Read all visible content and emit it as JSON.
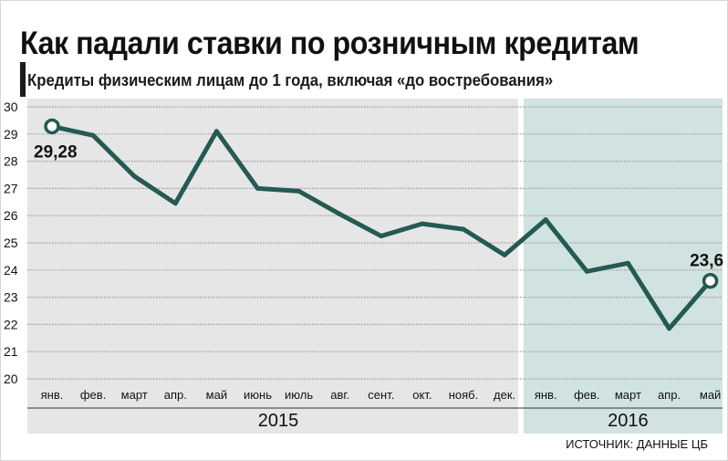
{
  "title": "Как падали ставки по розничным кредитам",
  "subtitle": "Кредиты физическим лицам до 1 года, включая «до востребования»",
  "source": "ИСТОЧНИК: ДАННЫЕ ЦБ",
  "colors": {
    "line": "#245a53",
    "panel_2015": "#e6e6e6",
    "panel_2016": "#d1e3e0",
    "grid": "#9a9a9a"
  },
  "chart_data": {
    "type": "line",
    "categories": [
      "янв.",
      "фев.",
      "март",
      "апр.",
      "май",
      "июнь",
      "июль",
      "авг.",
      "сент.",
      "окт.",
      "нояб.",
      "дек.",
      "янв.",
      "фев.",
      "март",
      "апр.",
      "май"
    ],
    "values": [
      29.28,
      28.95,
      27.45,
      26.45,
      29.1,
      27.0,
      26.9,
      26.05,
      25.25,
      25.7,
      25.5,
      24.55,
      25.85,
      23.95,
      24.25,
      21.85,
      23.6
    ],
    "ylim": [
      20,
      30
    ],
    "yticks": [
      20,
      21,
      22,
      23,
      24,
      25,
      26,
      27,
      28,
      29,
      30
    ],
    "years": [
      {
        "label": "2015",
        "months": 12
      },
      {
        "label": "2016",
        "months": 5
      }
    ],
    "annotations": [
      {
        "index": 0,
        "text": "29,28"
      },
      {
        "index": 16,
        "text": "23,6"
      }
    ],
    "grid": true
  }
}
